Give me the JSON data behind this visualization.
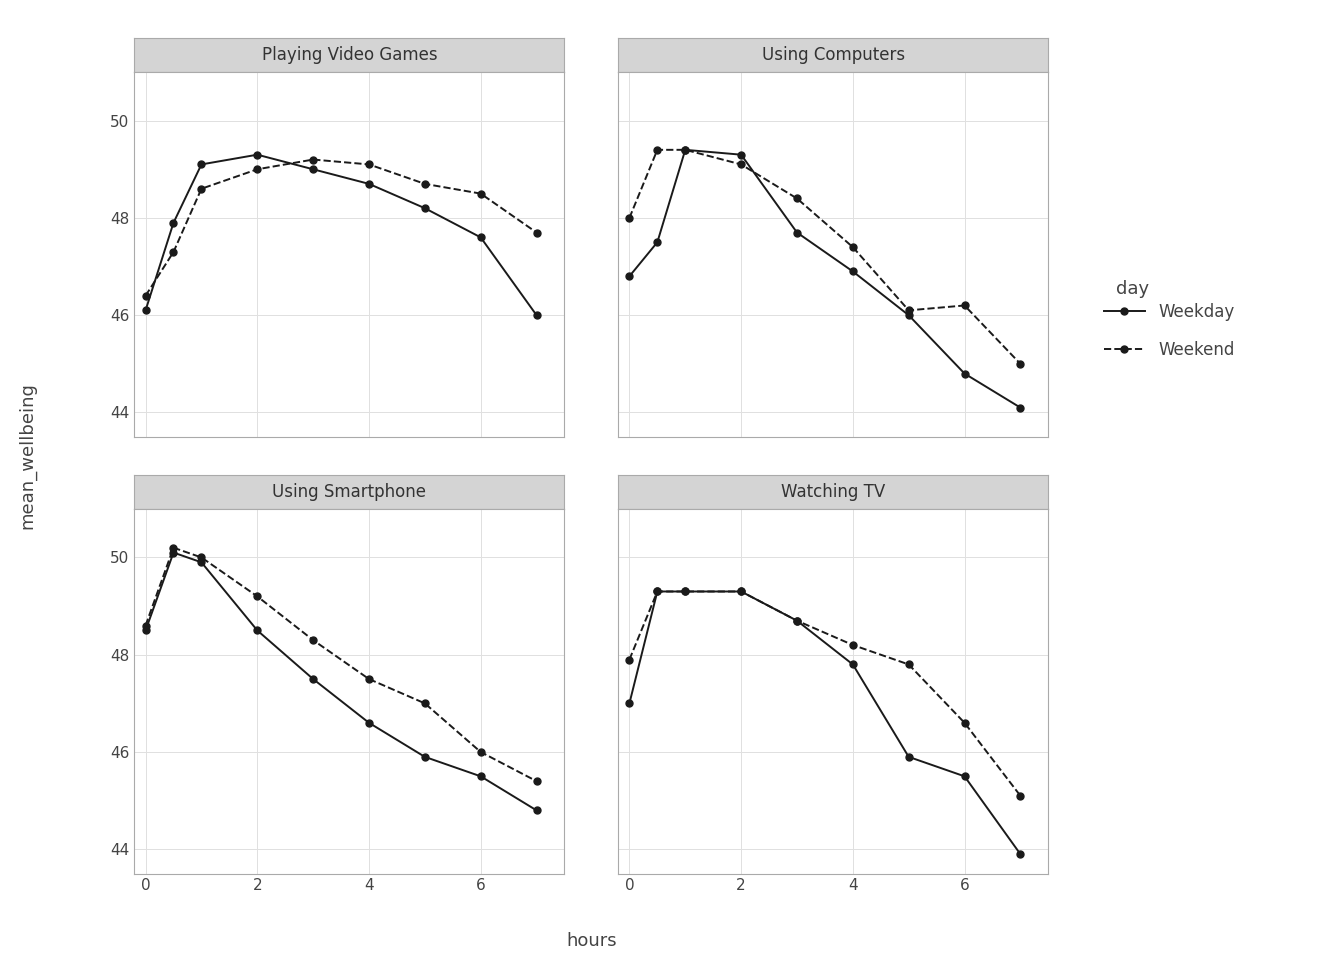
{
  "panels": [
    {
      "title": "Playing Video Games",
      "hours": [
        0,
        0.5,
        1,
        2,
        3,
        4,
        5,
        6,
        7
      ],
      "weekday": [
        46.1,
        47.9,
        49.1,
        49.3,
        49.0,
        48.7,
        48.2,
        47.6,
        46.0
      ],
      "weekend": [
        46.4,
        47.3,
        48.6,
        49.0,
        49.2,
        49.1,
        48.7,
        48.5,
        47.7
      ]
    },
    {
      "title": "Using Computers",
      "hours": [
        0,
        0.5,
        1,
        2,
        3,
        4,
        5,
        6,
        7
      ],
      "weekday": [
        46.8,
        47.5,
        49.4,
        49.3,
        47.7,
        46.9,
        46.0,
        44.8,
        44.1
      ],
      "weekend": [
        48.0,
        49.4,
        49.4,
        49.1,
        48.4,
        47.4,
        46.1,
        46.2,
        45.0
      ]
    },
    {
      "title": "Using Smartphone",
      "hours": [
        0,
        0.5,
        1,
        2,
        3,
        4,
        5,
        6,
        7
      ],
      "weekday": [
        48.5,
        50.1,
        49.9,
        48.5,
        47.5,
        46.6,
        45.9,
        45.5,
        44.8
      ],
      "weekend": [
        48.6,
        50.2,
        50.0,
        49.2,
        48.3,
        47.5,
        47.0,
        46.0,
        45.4
      ]
    },
    {
      "title": "Watching TV",
      "hours": [
        0,
        0.5,
        1,
        2,
        3,
        4,
        5,
        6,
        7
      ],
      "weekday": [
        47.0,
        49.3,
        49.3,
        49.3,
        48.7,
        47.8,
        45.9,
        45.5,
        43.9
      ],
      "weekend": [
        47.9,
        49.3,
        49.3,
        49.3,
        48.7,
        48.2,
        47.8,
        46.6,
        45.1
      ]
    }
  ],
  "ylim": [
    43.5,
    51.0
  ],
  "xlim": [
    -0.2,
    7.5
  ],
  "yticks": [
    44,
    46,
    48,
    50
  ],
  "xticks": [
    0,
    2,
    4,
    6
  ],
  "xlabel": "hours",
  "ylabel": "mean_wellbeing",
  "legend_title": "day",
  "legend_entries": [
    "Weekday",
    "Weekend"
  ],
  "line_color": "#1a1a1a",
  "strip_bg": "#d4d4d4",
  "plot_bg": "#ffffff",
  "grid_color": "#e0e0e0",
  "tick_color": "#444444",
  "title_color": "#333333",
  "marker_size": 5,
  "linewidth": 1.4,
  "outer_border_color": "#aaaaaa"
}
